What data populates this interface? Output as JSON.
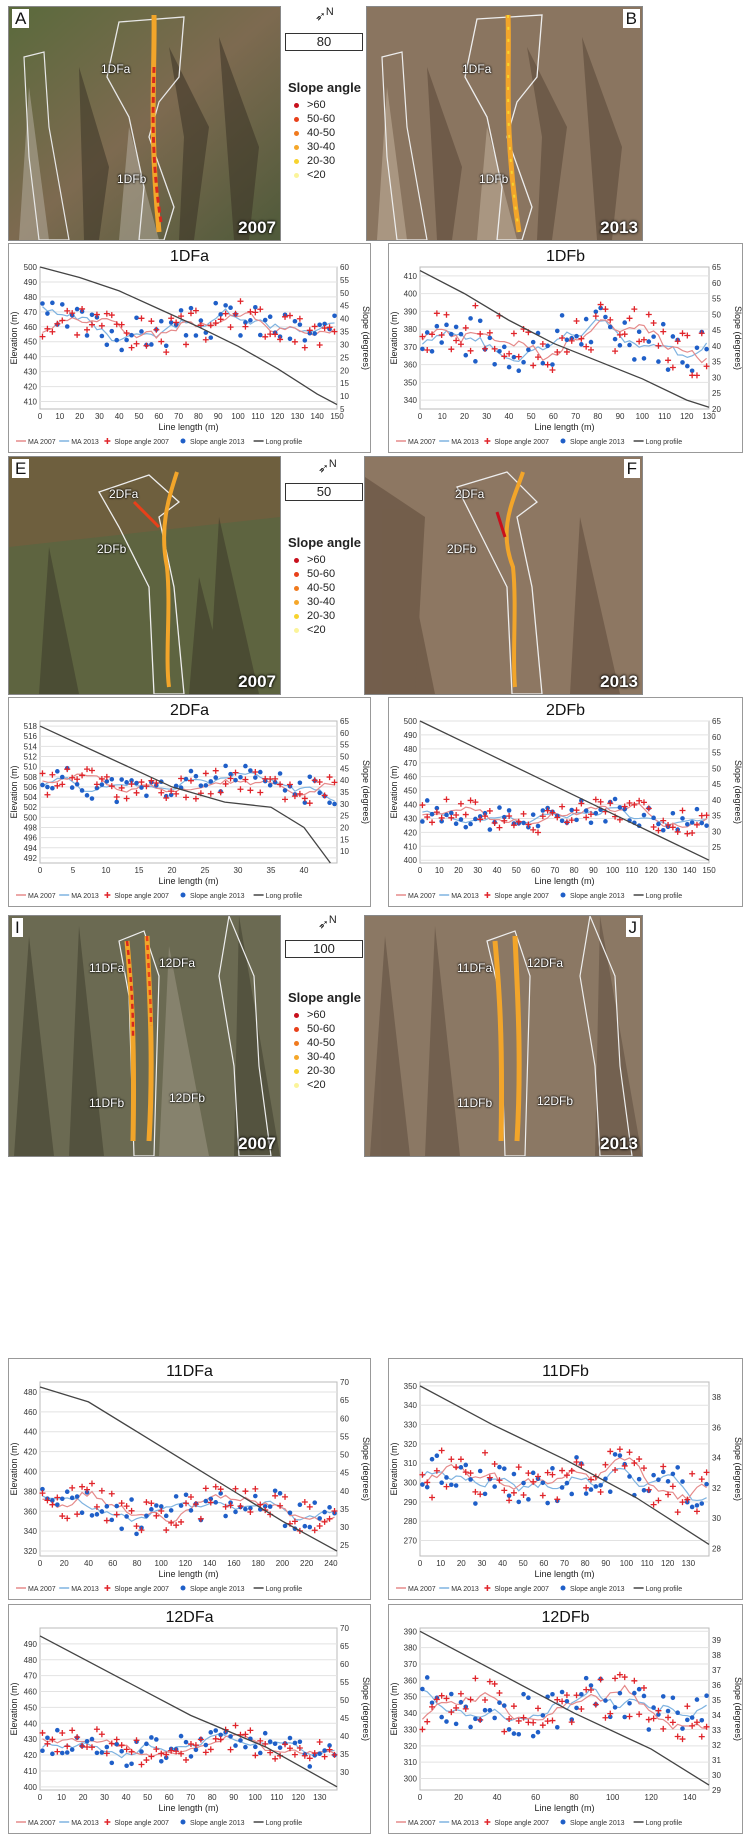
{
  "legend": {
    "title": "Slope angle",
    "classes": [
      {
        "label": ">60",
        "color": "#c8101c"
      },
      {
        "label": "50-60",
        "color": "#e8401a"
      },
      {
        "label": "40-50",
        "color": "#f07a1e"
      },
      {
        "label": "30-40",
        "color": "#f5a72a"
      },
      {
        "label": "20-30",
        "color": "#f7d32e"
      },
      {
        "label": "<20",
        "color": "#fbf49a"
      }
    ],
    "classes_top": [
      "&gt;60",
      "50 - 60",
      "40 - 50",
      "30 - 40",
      "20 - 30",
      "<20"
    ]
  },
  "panels": {
    "A": {
      "letter": "A",
      "year": "2007",
      "labels": [
        "1DFa",
        "1DFb"
      ]
    },
    "B": {
      "letter": "B",
      "year": "2013",
      "labels": [
        "1DFa",
        "1DFb"
      ]
    },
    "E": {
      "letter": "E",
      "year": "2007",
      "labels": [
        "2DFa",
        "2DFb"
      ]
    },
    "F": {
      "letter": "F",
      "year": "2013",
      "labels": [
        "2DFa",
        "2DFb"
      ]
    },
    "I": {
      "letter": "I",
      "year": "2007",
      "labels": [
        "11DFa",
        "12DFa",
        "11DFb",
        "12DFb"
      ]
    },
    "J": {
      "letter": "J",
      "year": "2013",
      "labels": [
        "11DFa",
        "12DFa",
        "11DFb",
        "12DFb"
      ]
    }
  },
  "scales": [
    {
      "value": "80",
      "unit": "m"
    },
    {
      "value": "50",
      "unit": "m"
    },
    {
      "value": "100",
      "unit": "m"
    }
  ],
  "north_label": "N",
  "chart_legend": [
    "MA 2007",
    "MA 2013",
    "Slope angle 2007",
    "Slope angle 2013",
    "Long profile"
  ],
  "colors": {
    "ma2007": "#e58a8a",
    "ma2013": "#7fb3e0",
    "slope2007": "#e0242a",
    "slope2013": "#1f5fc8",
    "profile": "#444444"
  },
  "chart_data": [
    {
      "id": "C",
      "type": "line",
      "title": "1DFa",
      "xlabel": "Line length (m)",
      "ylabel": "Elevation (m)",
      "y2label": "Slope (degrees)",
      "xlim": [
        0,
        150
      ],
      "xticks": [
        0,
        10,
        20,
        30,
        40,
        50,
        60,
        70,
        80,
        90,
        100,
        110,
        120,
        130,
        140,
        150
      ],
      "ylim": [
        405,
        500
      ],
      "yticks": [
        410,
        420,
        430,
        440,
        450,
        460,
        470,
        480,
        490,
        500
      ],
      "y2lim": [
        5,
        60
      ],
      "y2ticks": [
        5,
        10,
        15,
        20,
        25,
        30,
        35,
        40,
        45,
        50,
        55,
        60
      ],
      "profile": [
        [
          0,
          500
        ],
        [
          20,
          493
        ],
        [
          40,
          484
        ],
        [
          60,
          472
        ],
        [
          80,
          460
        ],
        [
          100,
          447
        ],
        [
          120,
          432
        ],
        [
          140,
          415
        ],
        [
          150,
          408
        ]
      ],
      "slope_base": 37,
      "slope_amp": 7,
      "seed": 3
    },
    {
      "id": "D",
      "type": "line",
      "title": "1DFb",
      "xlabel": "Line length (m)",
      "ylabel": "Elevation (m)",
      "y2label": "Slope (degrees)",
      "xlim": [
        0,
        130
      ],
      "xticks": [
        0,
        10,
        20,
        30,
        40,
        50,
        60,
        70,
        80,
        90,
        100,
        110,
        120,
        130
      ],
      "ylim": [
        335,
        415
      ],
      "yticks": [
        340,
        350,
        360,
        370,
        380,
        390,
        400,
        410
      ],
      "y2lim": [
        20,
        65
      ],
      "y2ticks": [
        20,
        25,
        30,
        35,
        40,
        45,
        50,
        55,
        60,
        65
      ],
      "profile": [
        [
          0,
          413
        ],
        [
          20,
          400
        ],
        [
          40,
          385
        ],
        [
          60,
          372
        ],
        [
          80,
          362
        ],
        [
          100,
          352
        ],
        [
          120,
          340
        ],
        [
          130,
          336
        ]
      ],
      "slope_base": 42,
      "slope_amp": 8,
      "seed": 7
    },
    {
      "id": "G",
      "type": "line",
      "title": "2DFa",
      "xlabel": "Line length (m)",
      "ylabel": "Elevation (m)",
      "y2label": "Slope (degrees)",
      "xlim": [
        0,
        45
      ],
      "xticks": [
        0,
        5,
        10,
        15,
        20,
        25,
        30,
        35,
        40
      ],
      "ylim": [
        491,
        519
      ],
      "yticks": [
        492,
        494,
        496,
        498,
        500,
        502,
        504,
        506,
        508,
        510,
        512,
        514,
        516,
        518
      ],
      "y2lim": [
        5,
        65
      ],
      "y2ticks": [
        10,
        15,
        20,
        25,
        30,
        35,
        40,
        45,
        50,
        55,
        60,
        65
      ],
      "profile": [
        [
          0,
          518
        ],
        [
          10,
          512
        ],
        [
          20,
          506
        ],
        [
          28,
          503
        ],
        [
          35,
          502
        ],
        [
          40,
          498
        ],
        [
          44,
          491
        ]
      ],
      "slope_base": 38,
      "slope_amp": 6,
      "seed": 11
    },
    {
      "id": "H",
      "type": "line",
      "title": "2DFb",
      "xlabel": "Line length (m)",
      "ylabel": "Elevation (m)",
      "y2label": "Slope (degrees)",
      "xlim": [
        0,
        150
      ],
      "xticks": [
        0,
        10,
        20,
        30,
        40,
        50,
        60,
        70,
        80,
        90,
        100,
        110,
        120,
        130,
        140,
        150
      ],
      "ylim": [
        398,
        500
      ],
      "yticks": [
        400,
        410,
        420,
        430,
        440,
        450,
        460,
        470,
        480,
        490,
        500
      ],
      "y2lim": [
        20,
        65
      ],
      "y2ticks": [
        25,
        30,
        35,
        40,
        45,
        50,
        55,
        60,
        65
      ],
      "profile": [
        [
          0,
          500
        ],
        [
          30,
          480
        ],
        [
          60,
          460
        ],
        [
          90,
          440
        ],
        [
          120,
          420
        ],
        [
          150,
          400
        ]
      ],
      "slope_base": 35,
      "slope_amp": 4,
      "seed": 17
    },
    {
      "id": "K",
      "type": "line",
      "title": "11DFa",
      "xlabel": "Line length (m)",
      "ylabel": "Elevation (m)",
      "y2label": "Slope (degrees)",
      "xlim": [
        0,
        245
      ],
      "xticks": [
        0,
        20,
        40,
        60,
        80,
        100,
        120,
        140,
        160,
        180,
        200,
        220,
        240
      ],
      "ylim": [
        315,
        490
      ],
      "yticks": [
        320,
        340,
        360,
        380,
        400,
        420,
        440,
        460,
        480
      ],
      "y2lim": [
        22,
        70
      ],
      "y2ticks": [
        25,
        30,
        35,
        40,
        45,
        50,
        55,
        60,
        65,
        70
      ],
      "profile": [
        [
          0,
          485
        ],
        [
          40,
          470
        ],
        [
          80,
          440
        ],
        [
          120,
          410
        ],
        [
          160,
          380
        ],
        [
          200,
          350
        ],
        [
          245,
          320
        ]
      ],
      "slope_base": 35,
      "slope_amp": 5,
      "seed": 23
    },
    {
      "id": "L",
      "type": "line",
      "title": "11DFb",
      "xlabel": "Line length (m)",
      "ylabel": "Elevation (m)",
      "y2label": "Slope (degrees)",
      "xlim": [
        0,
        140
      ],
      "xticks": [
        0,
        10,
        20,
        30,
        40,
        50,
        60,
        70,
        80,
        90,
        100,
        110,
        120,
        130
      ],
      "ylim": [
        262,
        352
      ],
      "yticks": [
        270,
        280,
        290,
        300,
        310,
        320,
        330,
        340,
        350
      ],
      "y2lim": [
        27.5,
        39
      ],
      "y2ticks": [
        28,
        30,
        32,
        34,
        36,
        38
      ],
      "profile": [
        [
          0,
          350
        ],
        [
          35,
          330
        ],
        [
          70,
          312
        ],
        [
          105,
          292
        ],
        [
          140,
          268
        ]
      ],
      "slope_base": 32.5,
      "slope_amp": 1.5,
      "seed": 31
    },
    {
      "id": "M",
      "type": "line",
      "title": "12DFa",
      "xlabel": "Line length (m)",
      "ylabel": "Elevation (m)",
      "y2label": "Slope (degrees)",
      "xlim": [
        0,
        138
      ],
      "xticks": [
        0,
        10,
        20,
        30,
        40,
        50,
        60,
        70,
        80,
        90,
        100,
        110,
        120,
        130
      ],
      "ylim": [
        398,
        500
      ],
      "yticks": [
        400,
        410,
        420,
        430,
        440,
        450,
        460,
        470,
        480,
        490
      ],
      "y2lim": [
        25,
        70
      ],
      "y2ticks": [
        30,
        35,
        40,
        45,
        50,
        55,
        60,
        65,
        70
      ],
      "profile": [
        [
          0,
          495
        ],
        [
          35,
          470
        ],
        [
          70,
          445
        ],
        [
          105,
          425
        ],
        [
          138,
          400
        ]
      ],
      "slope_base": 37,
      "slope_amp": 4,
      "seed": 41
    },
    {
      "id": "N",
      "type": "line",
      "title": "12DFb",
      "xlabel": "Line length (m)",
      "ylabel": "Elevation (m)",
      "y2label": "Slope (degrees)",
      "xlim": [
        0,
        150
      ],
      "xticks": [
        0,
        20,
        40,
        60,
        80,
        100,
        120,
        140
      ],
      "ylim": [
        293,
        392
      ],
      "yticks": [
        300,
        310,
        320,
        330,
        340,
        350,
        360,
        370,
        380,
        390
      ],
      "y2lim": [
        29,
        39.8
      ],
      "y2ticks": [
        29,
        30,
        31,
        32,
        33,
        34,
        35,
        36,
        37,
        38,
        39
      ],
      "profile": [
        [
          0,
          390
        ],
        [
          40,
          365
        ],
        [
          80,
          340
        ],
        [
          120,
          318
        ],
        [
          150,
          296
        ]
      ],
      "slope_base": 34.5,
      "slope_amp": 1.5,
      "seed": 53
    }
  ]
}
